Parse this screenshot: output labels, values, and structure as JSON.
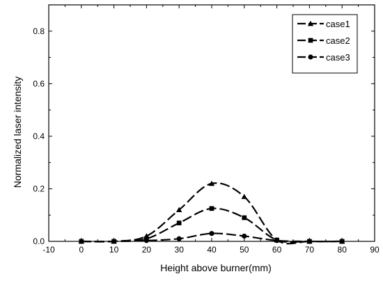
{
  "chart_data": {
    "type": "line",
    "xlabel": "Height above burner(mm)",
    "ylabel": "Normalized laser intensity",
    "xlim": [
      -10,
      90
    ],
    "ylim": [
      0.0,
      0.9
    ],
    "xticks": [
      -10,
      0,
      10,
      20,
      30,
      40,
      50,
      60,
      70,
      80,
      90
    ],
    "yticks": [
      0.0,
      0.2,
      0.4,
      0.6,
      0.8
    ],
    "xtick_labels": [
      "-10",
      "0",
      "10",
      "20",
      "30",
      "40",
      "50",
      "60",
      "70",
      "80",
      "90"
    ],
    "ytick_labels": [
      "0.0",
      "0.2",
      "0.4",
      "0.6",
      "0.8"
    ],
    "grid": false,
    "legend_position": "top-right",
    "series": [
      {
        "name": "case1",
        "marker": "triangle",
        "x": [
          0,
          10,
          20,
          30,
          40,
          50,
          60,
          70,
          80
        ],
        "y": [
          0.0,
          0.0,
          0.02,
          0.12,
          0.22,
          0.17,
          0.005,
          0.0,
          0.0
        ]
      },
      {
        "name": "case2",
        "marker": "square",
        "x": [
          0,
          10,
          20,
          30,
          40,
          50,
          60,
          70,
          80
        ],
        "y": [
          0.0,
          0.0,
          0.01,
          0.07,
          0.125,
          0.09,
          0.005,
          0.0,
          0.0
        ]
      },
      {
        "name": "case3",
        "marker": "circle",
        "x": [
          0,
          10,
          20,
          30,
          40,
          50,
          60,
          70,
          80
        ],
        "y": [
          0.0,
          0.0,
          0.003,
          0.01,
          0.03,
          0.02,
          0.003,
          0.0,
          0.0
        ]
      }
    ],
    "colors": {
      "line": "#000000",
      "background": "#ffffff"
    }
  }
}
